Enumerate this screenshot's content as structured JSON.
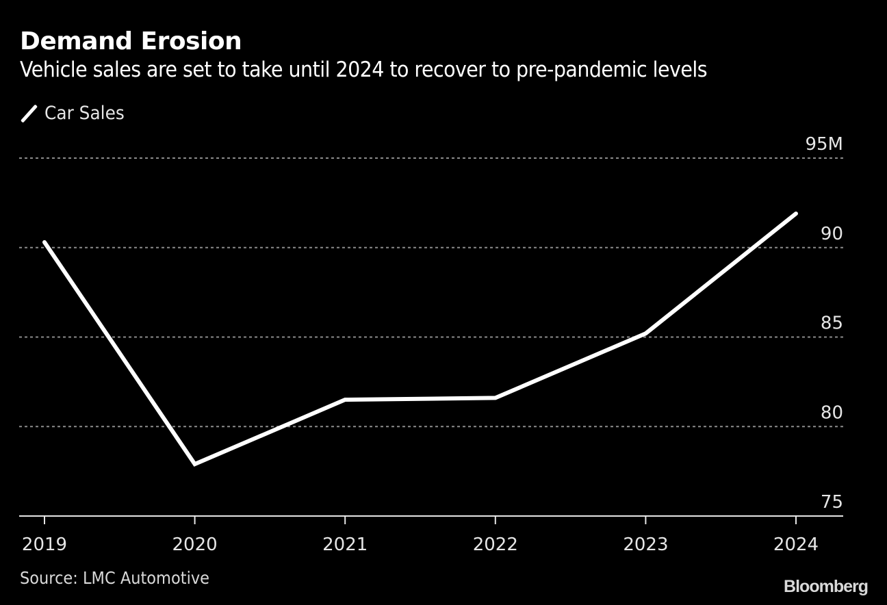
{
  "header": {
    "title": "Demand Erosion",
    "subtitle": "Vehicle sales are set to take until 2024 to recover to pre-pandemic levels"
  },
  "legend": {
    "items": [
      {
        "label": "Car Sales",
        "color": "#ffffff"
      }
    ]
  },
  "footer": {
    "source": "Source: LMC Automotive",
    "brand": "Bloomberg"
  },
  "chart_data": {
    "type": "line",
    "title": "Demand Erosion",
    "subtitle": "Vehicle sales are set to take until 2024 to recover to pre-pandemic levels",
    "xlabel": "",
    "ylabel": "",
    "x": [
      "2019",
      "2020",
      "2021",
      "2022",
      "2023",
      "2024"
    ],
    "series": [
      {
        "name": "Car Sales",
        "color": "#ffffff",
        "values": [
          90.3,
          77.9,
          81.5,
          81.6,
          85.2,
          91.9
        ]
      }
    ],
    "ylim": [
      75,
      95
    ],
    "yticks": [
      75,
      80,
      85,
      90,
      95
    ],
    "ytick_labels": [
      "75",
      "80",
      "85",
      "90",
      "95M"
    ],
    "y_axis_side": "right",
    "grid": true,
    "grid_style": "dotted",
    "legend_position": "top-left",
    "source": "Source: LMC Automotive",
    "colors": {
      "background": "#000000",
      "line": "#ffffff",
      "grid": "#8c8c8c",
      "text": "#e6e6e6"
    }
  }
}
